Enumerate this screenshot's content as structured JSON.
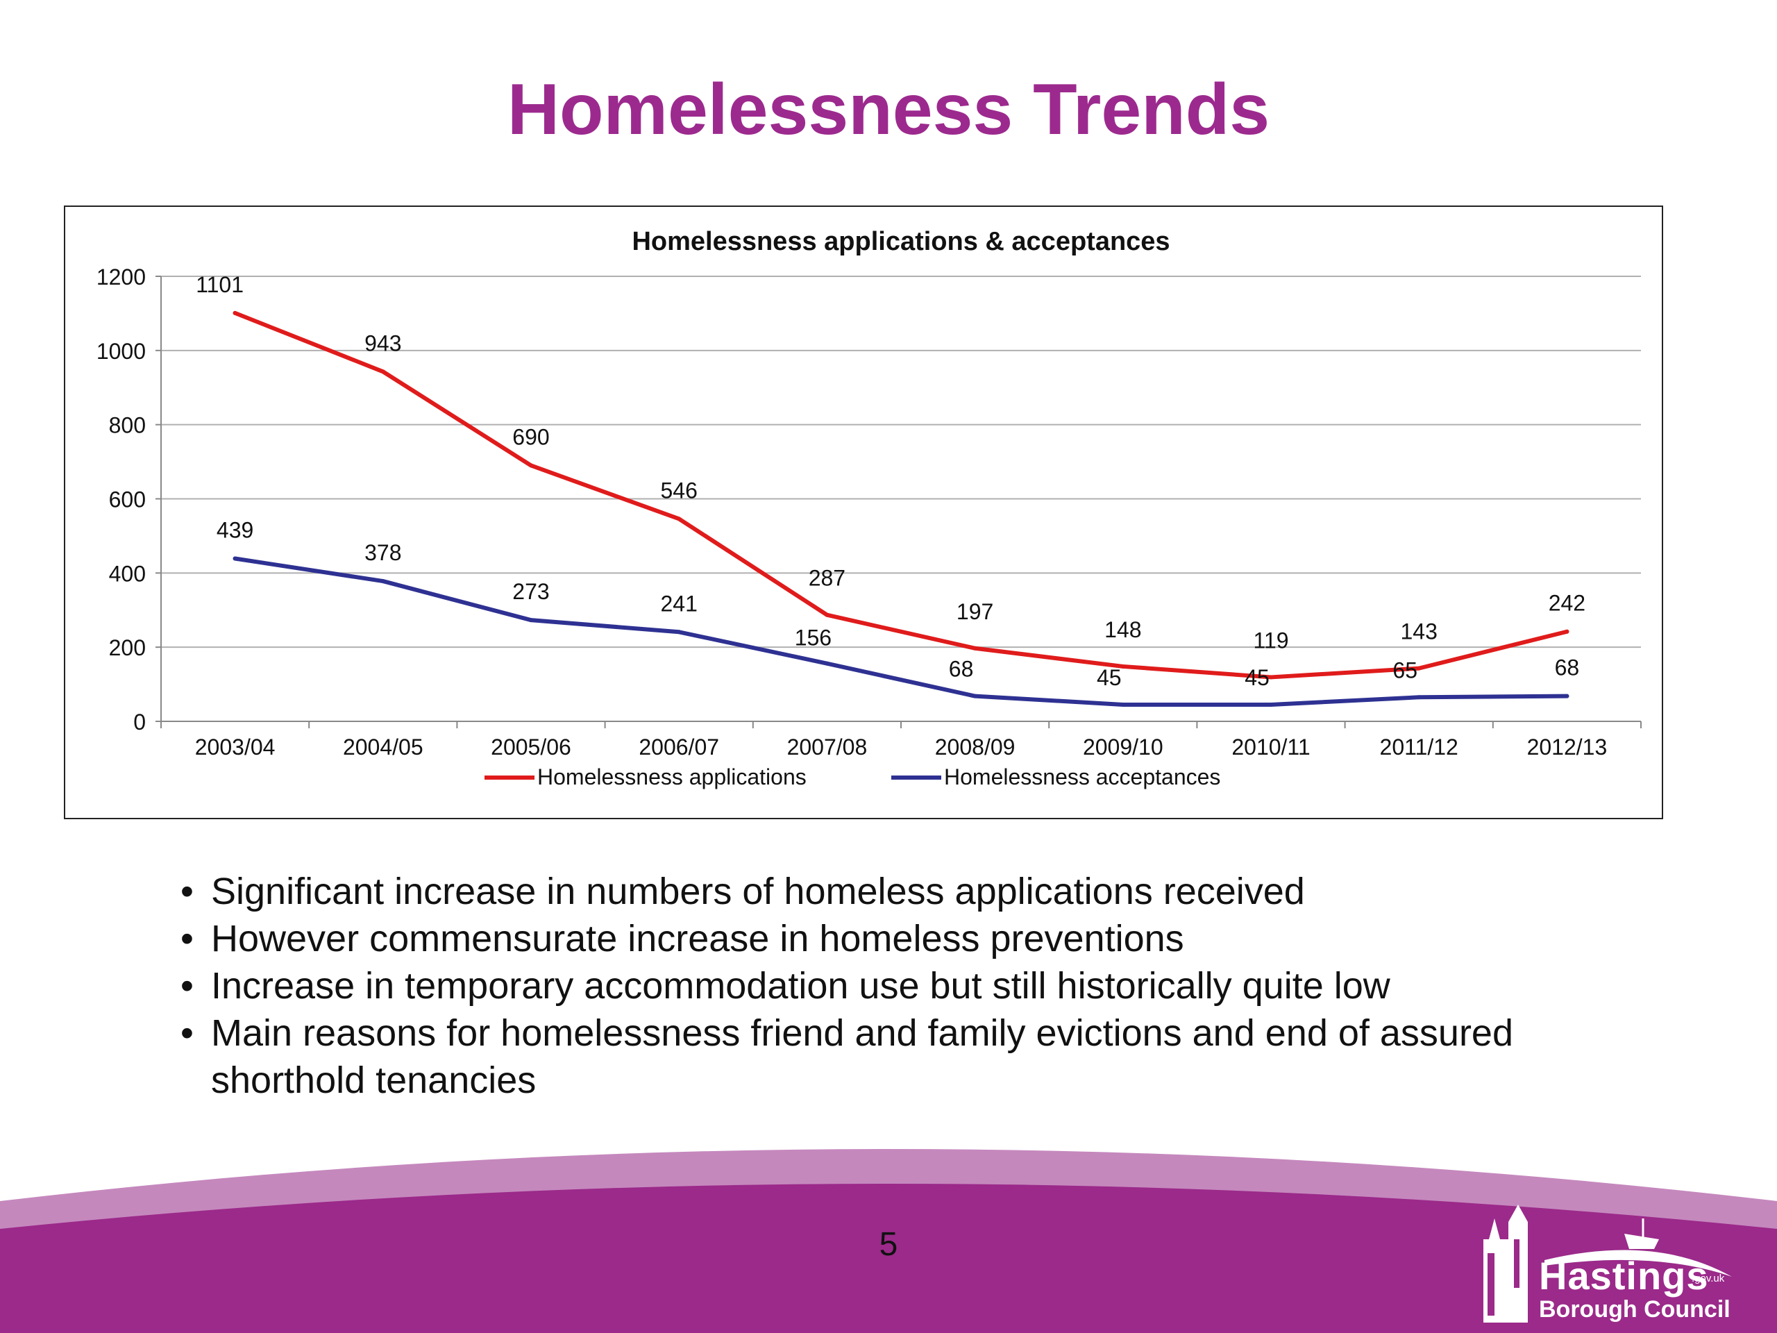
{
  "slide": {
    "title": "Homelessness Trends",
    "page_number": "5",
    "bullets": [
      "Significant increase in numbers of homeless applications received",
      "However commensurate increase in homeless preventions",
      "Increase in temporary accommodation use but still historically quite low",
      "Main reasons for homelessness friend and family evictions and end of assured shorthold  tenancies"
    ],
    "bullet_symbol": "•",
    "logo": {
      "name": "Hastings",
      "domain": ".gov.uk",
      "subtitle": "Borough Council"
    }
  },
  "colors": {
    "title": "#9c2a8e",
    "footer_dark": "#9b2a8a",
    "footer_light": "#c588bd",
    "applications": "#e01b1b",
    "acceptances": "#2e3192",
    "grid": "#b0b0b0"
  },
  "chart_data": {
    "type": "line",
    "title": "Homelessness applications & acceptances",
    "categories": [
      "2003/04",
      "2004/05",
      "2005/06",
      "2006/07",
      "2007/08",
      "2008/09",
      "2009/10",
      "2010/11",
      "2011/12",
      "2012/13"
    ],
    "series": [
      {
        "name": "Homelessness applications",
        "values": [
          1101,
          943,
          690,
          546,
          287,
          197,
          148,
          119,
          143,
          242
        ],
        "color": "#e01b1b"
      },
      {
        "name": "Homelessness acceptances",
        "values": [
          439,
          378,
          273,
          241,
          156,
          68,
          45,
          45,
          65,
          68
        ],
        "color": "#2e3192"
      }
    ],
    "ylim": [
      0,
      1200
    ],
    "yticks": [
      0,
      200,
      400,
      600,
      800,
      1000,
      1200
    ],
    "grid": true,
    "legend": "bottom",
    "data_labels": true
  }
}
